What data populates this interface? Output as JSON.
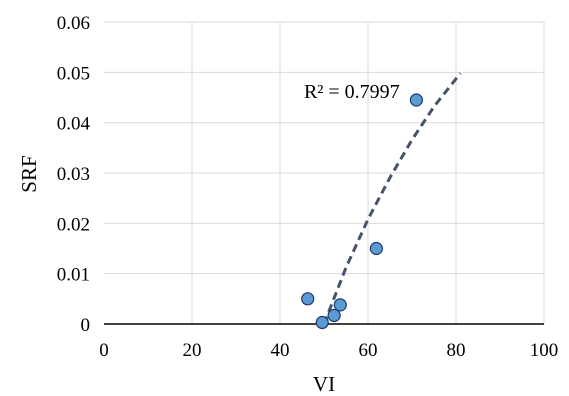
{
  "chart_data": {
    "type": "scatter",
    "xlabel": "VI",
    "ylabel": "SRF",
    "xlim": [
      0,
      100
    ],
    "ylim": [
      0,
      0.06
    ],
    "x_ticks": [
      "0",
      "20",
      "40",
      "60",
      "80",
      "100"
    ],
    "y_ticks": [
      "0",
      "0.01",
      "0.02",
      "0.03",
      "0.04",
      "0.05",
      "0.06"
    ],
    "grid": "on",
    "series": [
      {
        "type": "scatter",
        "points": [
          {
            "x": 46.3,
            "y": 0.005
          },
          {
            "x": 49.6,
            "y": 0.0003
          },
          {
            "x": 52.3,
            "y": 0.0017
          },
          {
            "x": 53.7,
            "y": 0.0038
          },
          {
            "x": 61.9,
            "y": 0.015
          },
          {
            "x": 71.0,
            "y": 0.0445
          }
        ]
      },
      {
        "type": "trendline",
        "style": "dashed",
        "points": [
          {
            "x": 50.0,
            "y": 0.0
          },
          {
            "x": 55.0,
            "y": 0.0112
          },
          {
            "x": 60.0,
            "y": 0.0208
          },
          {
            "x": 65.0,
            "y": 0.0291
          },
          {
            "x": 70.0,
            "y": 0.0366
          },
          {
            "x": 75.0,
            "y": 0.0432
          },
          {
            "x": 81.0,
            "y": 0.0498
          }
        ]
      }
    ],
    "annotation": "R² = 0.7997",
    "colors": {
      "marker_fill": "#5b9bd5",
      "marker_stroke": "#1f3864",
      "trendline": "#44546a",
      "grid": "#d9d9d9"
    }
  }
}
